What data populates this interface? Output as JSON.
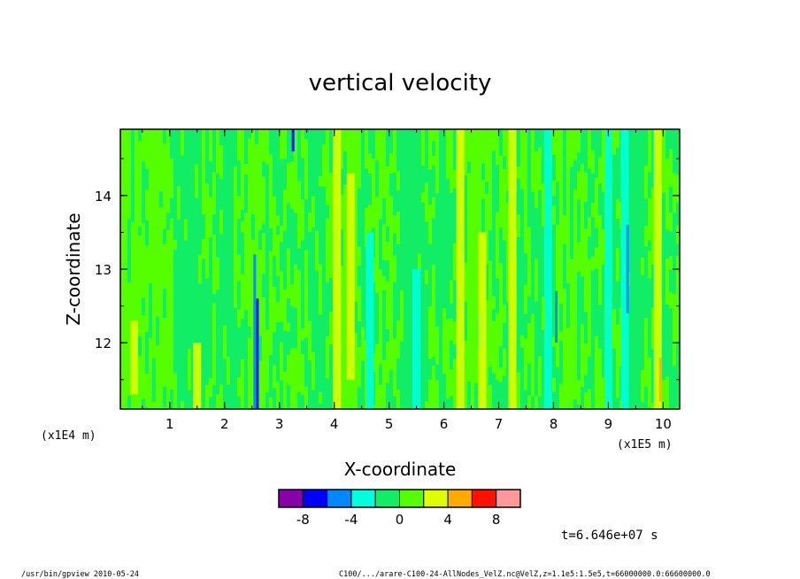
{
  "chart_data": {
    "type": "heatmap",
    "title": "vertical velocity",
    "xlabel": "X-coordinate",
    "ylabel": "Z-coordinate",
    "x_scale_label": "(x1E5 m)",
    "y_scale_label": "(x1E4 m)",
    "xlim": [
      0.1,
      10.3
    ],
    "ylim": [
      11.1,
      14.9
    ],
    "x_ticks": [
      1,
      2,
      3,
      4,
      5,
      6,
      7,
      8,
      9,
      10
    ],
    "y_ticks": [
      12,
      13,
      14
    ],
    "x_minor_step": 0.5,
    "y_minor_step": 0.5,
    "dominant_value_range": [
      -2,
      2
    ],
    "colorbar": {
      "colors": [
        "#8800aa",
        "#0000ff",
        "#0088ff",
        "#00ffdd",
        "#11ee66",
        "#55ff00",
        "#ddff00",
        "#ffaa00",
        "#ff1100",
        "#ff9999"
      ],
      "bounds": [
        -10,
        -8,
        -6,
        -4,
        -2,
        0,
        2,
        4,
        6,
        8,
        10
      ],
      "tick_labels": [
        "-8",
        "-4",
        "0",
        "4",
        "8"
      ],
      "tick_values": [
        -8,
        -4,
        0,
        4,
        8
      ]
    },
    "vertical_streaks": [
      {
        "x": 2.6,
        "z_range": [
          11.1,
          12.6
        ],
        "value": -8
      },
      {
        "x": 2.55,
        "z_range": [
          11.1,
          13.2
        ],
        "value": -5
      },
      {
        "x": 3.25,
        "z_range": [
          14.6,
          14.9
        ],
        "value": -8
      },
      {
        "x": 4.05,
        "z_range": [
          11.1,
          14.9
        ],
        "value": 3
      },
      {
        "x": 4.3,
        "z_range": [
          11.5,
          14.3
        ],
        "value": 3
      },
      {
        "x": 4.65,
        "z_range": [
          11.1,
          13.5
        ],
        "value": -3
      },
      {
        "x": 5.5,
        "z_range": [
          11.1,
          13.0
        ],
        "value": -3
      },
      {
        "x": 6.3,
        "z_range": [
          11.1,
          14.9
        ],
        "value": 3
      },
      {
        "x": 6.7,
        "z_range": [
          11.1,
          13.5
        ],
        "value": 3
      },
      {
        "x": 7.25,
        "z_range": [
          11.1,
          14.9
        ],
        "value": 3
      },
      {
        "x": 7.9,
        "z_range": [
          11.1,
          14.9
        ],
        "value": -3
      },
      {
        "x": 8.05,
        "z_range": [
          12.0,
          12.7
        ],
        "value": -6
      },
      {
        "x": 9.0,
        "z_range": [
          11.1,
          14.9
        ],
        "value": -3
      },
      {
        "x": 9.3,
        "z_range": [
          11.1,
          14.9
        ],
        "value": -3
      },
      {
        "x": 9.35,
        "z_range": [
          12.4,
          13.6
        ],
        "value": -6
      },
      {
        "x": 9.9,
        "z_range": [
          11.1,
          14.9
        ],
        "value": 3
      },
      {
        "x": 9.95,
        "z_range": [
          11.2,
          11.8
        ],
        "value": 5
      },
      {
        "x": 0.35,
        "z_range": [
          11.3,
          12.3
        ],
        "value": 3
      },
      {
        "x": 1.5,
        "z_range": [
          11.1,
          12.0
        ],
        "value": 3
      }
    ]
  },
  "footer": {
    "time": "t=6.646e+07 s",
    "program": "/usr/bin/gpview   2010-05-24",
    "source": "C100/.../arare-C100-24-AllNodes_VelZ.nc@VelZ,z=1.1e5:1.5e5,t=66000000.0:66600000.0"
  }
}
